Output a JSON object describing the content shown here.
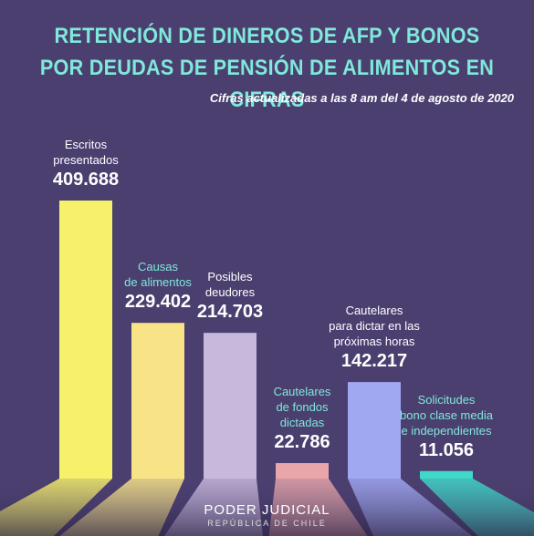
{
  "chart_data": {
    "type": "bar",
    "title": "RETENCIÓN DE DINEROS DE AFP Y BONOS\nPOR DEUDAS DE PENSIÓN DE ALIMENTOS EN CIFRAS",
    "subtitle": "Cifras actualizadas a las 8 am del 4 de agosto de 2020",
    "categories": [
      "Escritos\npresentados",
      "Causas\nde alimentos",
      "Posibles\ndeudores",
      "Cautelares\nde fondos\ndictadas",
      "Cautelares\npara dictar en las\npróximas horas",
      "Solicitudes\nbono clase media\ne independientes"
    ],
    "values": [
      409688,
      229402,
      214703,
      22786,
      142217,
      11056
    ],
    "value_labels": [
      "409.688",
      "229.402",
      "214.703",
      "22.786",
      "142.217",
      "11.056"
    ],
    "colors": [
      "#f6f06a",
      "#f8e487",
      "#c8b9dc",
      "#e8a6aa",
      "#a0a8f2",
      "#40d8c9"
    ],
    "label_colors": [
      "#ffffff",
      "#7fe9da",
      "#ffffff",
      "#7fe9da",
      "#ffffff",
      "#7fe9da"
    ],
    "footer": {
      "name": "PODER JUDICIAL",
      "country": "REPÚBLICA DE CHILE"
    }
  }
}
